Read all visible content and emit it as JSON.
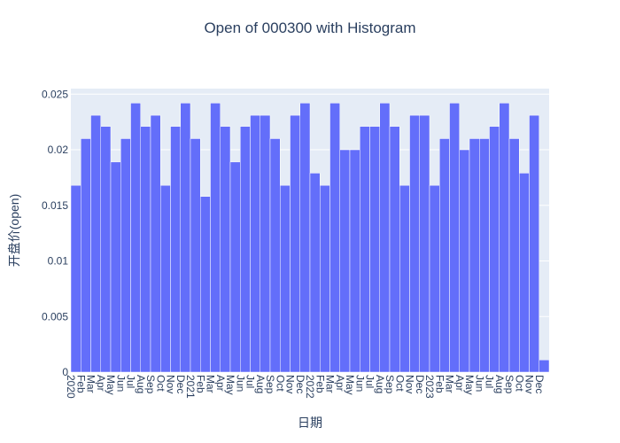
{
  "chart_data": {
    "type": "bar",
    "title": "Open of 000300 with Histogram",
    "xlabel": "日期",
    "ylabel": "开盘价(open)",
    "ylim": [
      0,
      0.0255
    ],
    "yticks": [
      0,
      0.005,
      0.01,
      0.015,
      0.02,
      0.025
    ],
    "ytick_labels": [
      "0",
      "0.005",
      "0.01",
      "0.015",
      "0.02",
      "0.025"
    ],
    "grid": true,
    "bar_color": "#636efa",
    "plot_background": "#e5ecf6",
    "x_start": "2020-01",
    "x_end": "2023-12",
    "categories": [
      "2020-01",
      "2020-02",
      "2020-03",
      "2020-04",
      "2020-05",
      "2020-06",
      "2020-07",
      "2020-08",
      "2020-09",
      "2020-10",
      "2020-11",
      "2020-12",
      "2021-01",
      "2021-02",
      "2021-03",
      "2021-04",
      "2021-05",
      "2021-06",
      "2021-07",
      "2021-08",
      "2021-09",
      "2021-10",
      "2021-11",
      "2021-12",
      "2022-01",
      "2022-02",
      "2022-03",
      "2022-04",
      "2022-05",
      "2022-06",
      "2022-07",
      "2022-08",
      "2022-09",
      "2022-10",
      "2022-11",
      "2022-12",
      "2023-01",
      "2023-02",
      "2023-03",
      "2023-04",
      "2023-05",
      "2023-06",
      "2023-07",
      "2023-08",
      "2023-09",
      "2023-10",
      "2023-11",
      "2023-12"
    ],
    "values": [
      0.0168,
      0.021,
      0.0231,
      0.0221,
      0.0189,
      0.021,
      0.0242,
      0.0221,
      0.0231,
      0.0168,
      0.0221,
      0.0242,
      0.021,
      0.0158,
      0.0242,
      0.0221,
      0.0189,
      0.0221,
      0.0231,
      0.0231,
      0.021,
      0.0168,
      0.0231,
      0.0242,
      0.0179,
      0.0168,
      0.0242,
      0.02,
      0.02,
      0.0221,
      0.0221,
      0.0242,
      0.0221,
      0.0168,
      0.0231,
      0.0231,
      0.0168,
      0.021,
      0.0242,
      0.02,
      0.021,
      0.021,
      0.0221,
      0.0242,
      0.021,
      0.0179,
      0.0231,
      0.0011
    ],
    "x_tick_labels": [
      "2020",
      "Feb",
      "Mar",
      "Apr",
      "May",
      "Jun",
      "Jul",
      "Aug",
      "Sep",
      "Oct",
      "Nov",
      "Dec",
      "2021",
      "Feb",
      "Mar",
      "Apr",
      "May",
      "Jun",
      "Jul",
      "Aug",
      "Sep",
      "Oct",
      "Nov",
      "Dec",
      "2022",
      "Feb",
      "Mar",
      "Apr",
      "May",
      "Jun",
      "Jul",
      "Aug",
      "Sep",
      "Oct",
      "Nov",
      "Dec",
      "2023",
      "Feb",
      "Mar",
      "Apr",
      "May",
      "Jun",
      "Jul",
      "Aug",
      "Sep",
      "Oct",
      "Nov",
      "Dec"
    ]
  }
}
